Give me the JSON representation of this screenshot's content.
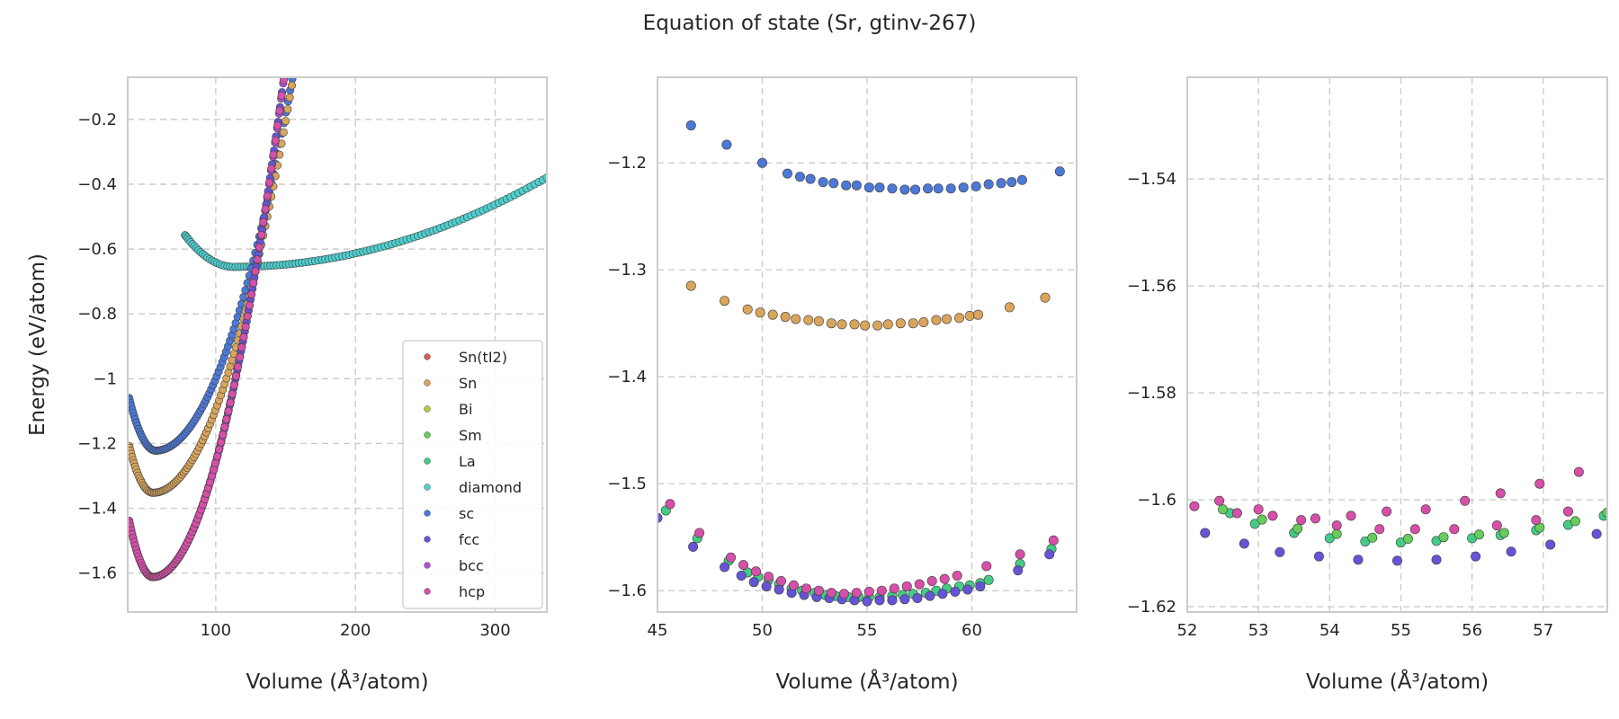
{
  "figure": {
    "title": "Equation of state (Sr, gtinv-267)"
  },
  "colors": {
    "Sn(tI2)": "#d65f5f",
    "Sn": "#d9a55b",
    "Bi": "#b6cc3d",
    "Sm": "#66cc5a",
    "La": "#44cc86",
    "diamond": "#4fcfcf",
    "sc": "#4c78d6",
    "fcc": "#6654d6",
    "bcc": "#b34fd6",
    "hcp": "#d64fa8"
  },
  "legend": {
    "placement": "lower-right",
    "entries": [
      "Sn(tI2)",
      "Sn",
      "Bi",
      "Sm",
      "La",
      "diamond",
      "sc",
      "fcc",
      "bcc",
      "hcp"
    ]
  },
  "chart_data": [
    {
      "type": "scatter",
      "xlabel": "Volume (Å³/atom)",
      "ylabel": "Energy (eV/atom)",
      "xlim": [
        37,
        337
      ],
      "ylim": [
        -1.72,
        -0.07
      ],
      "xticks": [
        100,
        200,
        300
      ],
      "yticks": [
        -1.6,
        -1.4,
        -1.2,
        -1.0,
        -0.8,
        -0.6,
        -0.4,
        -0.2
      ],
      "grid": true,
      "legend": true,
      "series": [
        {
          "name": "diamond",
          "curve": {
            "v0": 113,
            "e0": -0.655,
            "kl": 8e-05,
            "kr": 5.5e-06,
            "xmin": 78,
            "xmax": 337,
            "n": 112
          }
        },
        {
          "name": "sc",
          "curve": {
            "v0": 57,
            "e0": -1.222,
            "kl": 0.00045,
            "kr": 0.00012,
            "xmin": 38,
            "xmax": 170,
            "n": 108
          }
        },
        {
          "name": "Sn",
          "curve": {
            "v0": 55,
            "e0": -1.352,
            "kl": 0.0005,
            "kr": 0.000127,
            "xmin": 38,
            "xmax": 168,
            "n": 108
          }
        },
        {
          "name": "fcc",
          "curve": {
            "v0": 55,
            "e0": -1.612,
            "kl": 0.0006,
            "kr": 0.000175,
            "xmin": 38,
            "xmax": 165,
            "n": 108
          }
        },
        {
          "name": "bcc",
          "curve": {
            "v0": 55,
            "e0": -1.612,
            "kl": 0.0006,
            "kr": 0.000175,
            "xmin": 38,
            "xmax": 163,
            "n": 106
          }
        },
        {
          "name": "hcp",
          "curve": {
            "v0": 55,
            "e0": -1.612,
            "kl": 0.0006,
            "kr": 0.000175,
            "xmin": 38,
            "xmax": 162,
            "n": 104
          }
        }
      ]
    },
    {
      "type": "scatter",
      "xlabel": "Volume (Å³/atom)",
      "ylabel": "",
      "xlim": [
        45,
        65
      ],
      "ylim": [
        -1.62,
        -1.12
      ],
      "xticks": [
        45,
        50,
        55,
        60
      ],
      "yticks": [
        -1.6,
        -1.5,
        -1.4,
        -1.3,
        -1.2
      ],
      "grid": true,
      "legend": false,
      "series": [
        {
          "name": "sc",
          "points": [
            [
              46.6,
              -1.165
            ],
            [
              48.3,
              -1.183
            ],
            [
              50.0,
              -1.2
            ],
            [
              51.2,
              -1.21
            ],
            [
              51.8,
              -1.213
            ],
            [
              52.3,
              -1.215
            ],
            [
              52.9,
              -1.218
            ],
            [
              53.4,
              -1.219
            ],
            [
              54.0,
              -1.221
            ],
            [
              54.5,
              -1.221
            ],
            [
              55.1,
              -1.223
            ],
            [
              55.6,
              -1.223
            ],
            [
              56.2,
              -1.224
            ],
            [
              56.8,
              -1.225
            ],
            [
              57.3,
              -1.225
            ],
            [
              57.9,
              -1.224
            ],
            [
              58.4,
              -1.224
            ],
            [
              59.0,
              -1.224
            ],
            [
              59.6,
              -1.223
            ],
            [
              60.2,
              -1.222
            ],
            [
              60.8,
              -1.22
            ],
            [
              61.4,
              -1.219
            ],
            [
              61.9,
              -1.218
            ],
            [
              62.4,
              -1.216
            ],
            [
              64.2,
              -1.208
            ]
          ]
        },
        {
          "name": "Sn",
          "points": [
            [
              46.6,
              -1.315
            ],
            [
              48.2,
              -1.329
            ],
            [
              49.3,
              -1.337
            ],
            [
              49.9,
              -1.34
            ],
            [
              50.5,
              -1.342
            ],
            [
              51.1,
              -1.344
            ],
            [
              51.6,
              -1.346
            ],
            [
              52.2,
              -1.347
            ],
            [
              52.7,
              -1.348
            ],
            [
              53.3,
              -1.35
            ],
            [
              53.8,
              -1.351
            ],
            [
              54.4,
              -1.351
            ],
            [
              54.9,
              -1.352
            ],
            [
              55.5,
              -1.352
            ],
            [
              56.0,
              -1.351
            ],
            [
              56.6,
              -1.35
            ],
            [
              57.2,
              -1.35
            ],
            [
              57.7,
              -1.349
            ],
            [
              58.3,
              -1.347
            ],
            [
              58.8,
              -1.346
            ],
            [
              59.4,
              -1.345
            ],
            [
              59.9,
              -1.343
            ],
            [
              60.3,
              -1.342
            ],
            [
              61.8,
              -1.335
            ],
            [
              63.5,
              -1.326
            ]
          ]
        },
        {
          "name": "La",
          "points": [
            [
              45.4,
              -1.525
            ],
            [
              46.9,
              -1.551
            ],
            [
              48.4,
              -1.572
            ],
            [
              49.3,
              -1.583
            ],
            [
              49.8,
              -1.587
            ],
            [
              50.3,
              -1.59
            ],
            [
              50.8,
              -1.594
            ],
            [
              51.4,
              -1.598
            ],
            [
              51.9,
              -1.6
            ],
            [
              52.5,
              -1.602
            ],
            [
              53.0,
              -1.604
            ],
            [
              53.5,
              -1.605
            ],
            [
              54.1,
              -1.606
            ],
            [
              54.6,
              -1.606
            ],
            [
              55.1,
              -1.606
            ],
            [
              55.6,
              -1.606
            ],
            [
              56.2,
              -1.605
            ],
            [
              56.7,
              -1.604
            ],
            [
              57.2,
              -1.603
            ],
            [
              57.8,
              -1.602
            ],
            [
              58.3,
              -1.6
            ],
            [
              58.8,
              -1.598
            ],
            [
              59.4,
              -1.596
            ],
            [
              59.9,
              -1.595
            ],
            [
              60.4,
              -1.593
            ],
            [
              60.8,
              -1.59
            ],
            [
              62.3,
              -1.575
            ],
            [
              63.8,
              -1.561
            ]
          ]
        },
        {
          "name": "fcc",
          "points": [
            [
              45.0,
              -1.532
            ],
            [
              46.7,
              -1.559
            ],
            [
              48.2,
              -1.578
            ],
            [
              49.0,
              -1.586
            ],
            [
              49.6,
              -1.592
            ],
            [
              50.2,
              -1.596
            ],
            [
              50.8,
              -1.599
            ],
            [
              51.4,
              -1.602
            ],
            [
              52.0,
              -1.604
            ],
            [
              52.6,
              -1.606
            ],
            [
              53.2,
              -1.607
            ],
            [
              53.8,
              -1.608
            ],
            [
              54.4,
              -1.609
            ],
            [
              55.0,
              -1.61
            ],
            [
              55.6,
              -1.609
            ],
            [
              56.2,
              -1.609
            ],
            [
              56.8,
              -1.608
            ],
            [
              57.4,
              -1.607
            ],
            [
              58.0,
              -1.605
            ],
            [
              58.6,
              -1.603
            ],
            [
              59.2,
              -1.601
            ],
            [
              59.8,
              -1.599
            ],
            [
              60.4,
              -1.596
            ],
            [
              62.2,
              -1.581
            ],
            [
              63.7,
              -1.566
            ]
          ]
        },
        {
          "name": "hcp",
          "points": [
            [
              45.6,
              -1.519
            ],
            [
              47.0,
              -1.546
            ],
            [
              48.5,
              -1.569
            ],
            [
              49.1,
              -1.576
            ],
            [
              49.7,
              -1.582
            ],
            [
              50.3,
              -1.587
            ],
            [
              50.9,
              -1.591
            ],
            [
              51.5,
              -1.595
            ],
            [
              52.1,
              -1.598
            ],
            [
              52.7,
              -1.6
            ],
            [
              53.3,
              -1.602
            ],
            [
              53.9,
              -1.603
            ],
            [
              54.5,
              -1.602
            ],
            [
              55.1,
              -1.601
            ],
            [
              55.7,
              -1.6
            ],
            [
              56.3,
              -1.598
            ],
            [
              56.9,
              -1.596
            ],
            [
              57.5,
              -1.594
            ],
            [
              58.1,
              -1.591
            ],
            [
              58.7,
              -1.589
            ],
            [
              59.3,
              -1.586
            ],
            [
              60.7,
              -1.577
            ],
            [
              62.3,
              -1.566
            ],
            [
              63.9,
              -1.553
            ]
          ]
        }
      ]
    },
    {
      "type": "scatter",
      "xlabel": "Volume (Å³/atom)",
      "ylabel": "",
      "xlim": [
        52,
        57.9
      ],
      "ylim": [
        -1.621,
        -1.521
      ],
      "xticks": [
        52,
        53,
        54,
        55,
        56,
        57
      ],
      "yticks": [
        -1.62,
        -1.6,
        -1.58,
        -1.56,
        -1.54
      ],
      "grid": true,
      "legend": false,
      "series": [
        {
          "name": "La",
          "points": [
            [
              52.6,
              -1.6025
            ],
            [
              52.95,
              -1.6045
            ],
            [
              53.5,
              -1.6062
            ],
            [
              54.0,
              -1.6072
            ],
            [
              54.5,
              -1.6078
            ],
            [
              55.0,
              -1.608
            ],
            [
              55.5,
              -1.6077
            ],
            [
              56.0,
              -1.6072
            ],
            [
              56.4,
              -1.6066
            ],
            [
              56.9,
              -1.6057
            ],
            [
              57.35,
              -1.6047
            ],
            [
              57.85,
              -1.603
            ]
          ]
        },
        {
          "name": "Sm",
          "points": [
            [
              52.5,
              -1.6018
            ],
            [
              53.05,
              -1.6037
            ],
            [
              53.55,
              -1.6054
            ],
            [
              54.1,
              -1.6064
            ],
            [
              54.6,
              -1.6071
            ],
            [
              55.1,
              -1.6073
            ],
            [
              55.6,
              -1.607
            ],
            [
              56.1,
              -1.6065
            ],
            [
              56.45,
              -1.6062
            ],
            [
              56.95,
              -1.6052
            ],
            [
              57.45,
              -1.604
            ],
            [
              57.9,
              -1.6024
            ]
          ]
        },
        {
          "name": "fcc",
          "points": [
            [
              52.25,
              -1.6062
            ],
            [
              52.8,
              -1.6082
            ],
            [
              53.3,
              -1.6098
            ],
            [
              53.85,
              -1.6106
            ],
            [
              54.4,
              -1.6112
            ],
            [
              54.95,
              -1.6114
            ],
            [
              55.5,
              -1.6112
            ],
            [
              56.05,
              -1.6106
            ],
            [
              56.55,
              -1.6097
            ],
            [
              57.1,
              -1.6084
            ],
            [
              57.75,
              -1.6064
            ]
          ]
        },
        {
          "name": "hcp",
          "points": [
            [
              52.1,
              -1.6012
            ],
            [
              52.45,
              -1.6002
            ],
            [
              52.7,
              -1.6025
            ],
            [
              53.0,
              -1.6018
            ],
            [
              53.2,
              -1.603
            ],
            [
              53.6,
              -1.6038
            ],
            [
              53.8,
              -1.6035
            ],
            [
              54.1,
              -1.6048
            ],
            [
              54.3,
              -1.603
            ],
            [
              54.7,
              -1.6055
            ],
            [
              54.8,
              -1.6022
            ],
            [
              55.2,
              -1.6055
            ],
            [
              55.35,
              -1.6018
            ],
            [
              55.75,
              -1.6055
            ],
            [
              55.9,
              -1.6002
            ],
            [
              56.35,
              -1.6048
            ],
            [
              56.4,
              -1.5988
            ],
            [
              56.9,
              -1.6038
            ],
            [
              56.95,
              -1.597
            ],
            [
              57.35,
              -1.6022
            ],
            [
              57.5,
              -1.5948
            ]
          ]
        }
      ]
    }
  ]
}
